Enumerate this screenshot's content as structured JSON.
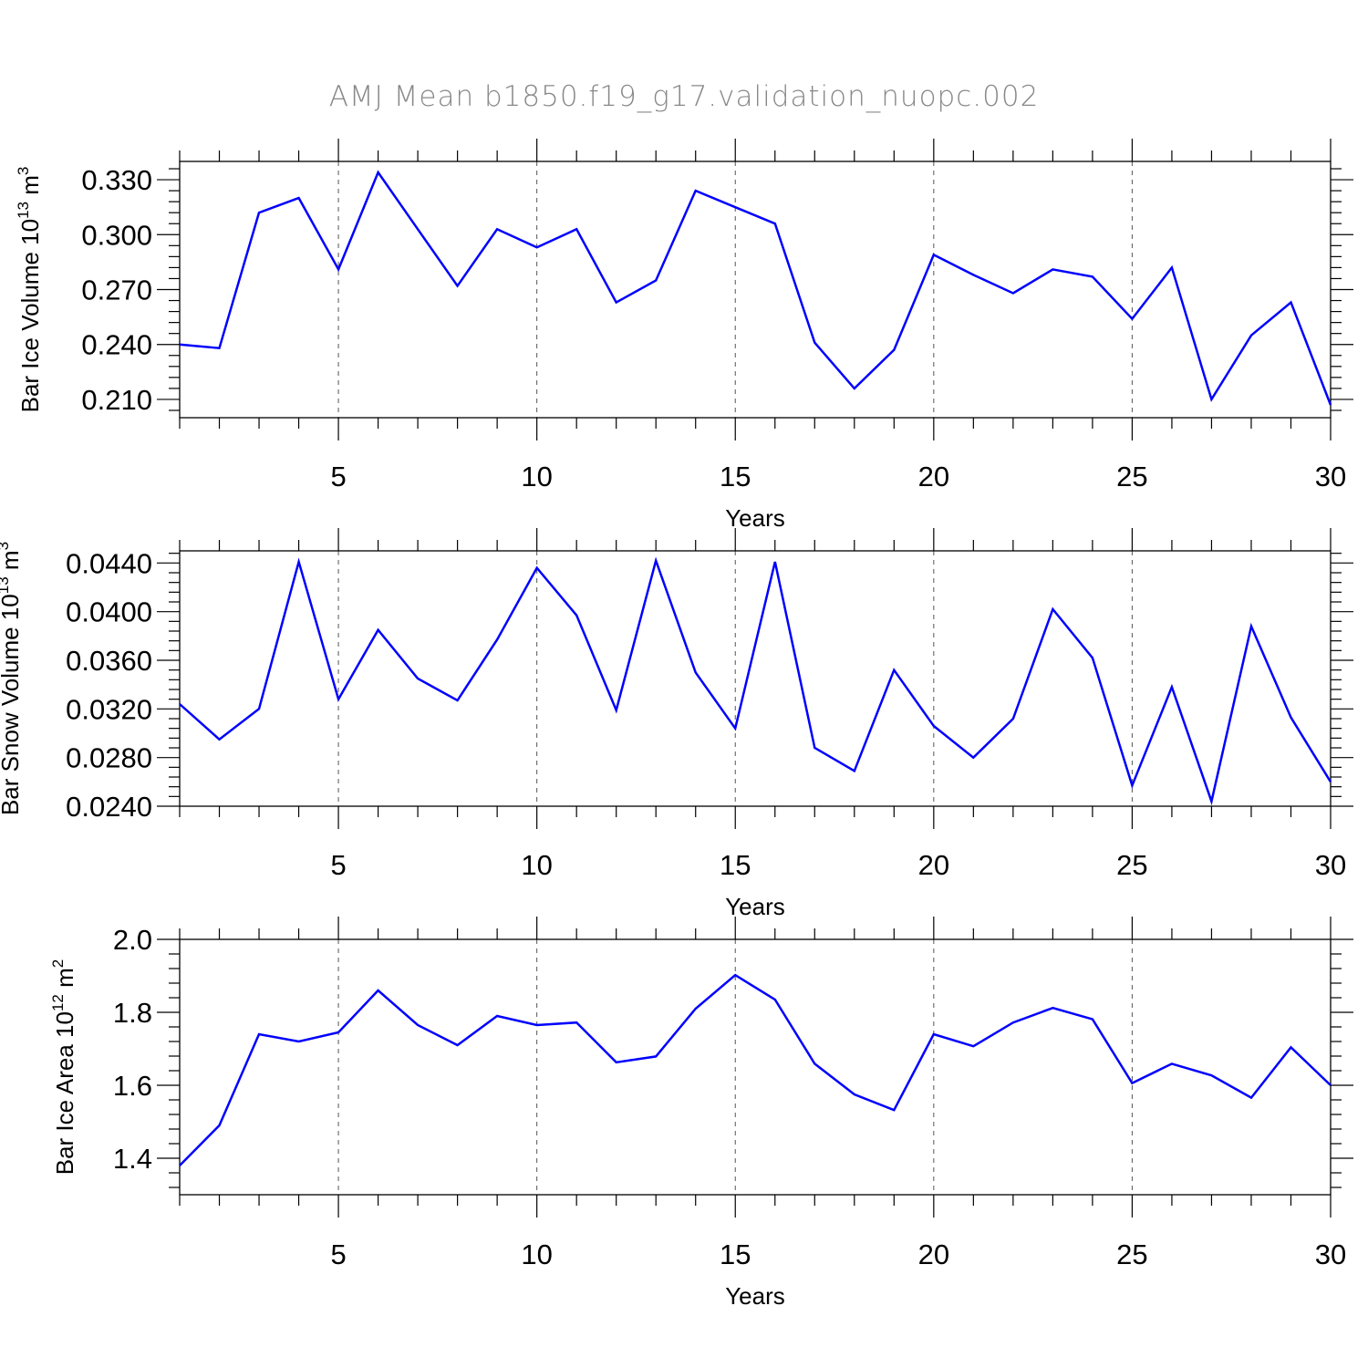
{
  "title": "AMJ Mean b1850.f19_g17.validation_nuopc.002",
  "colors": {
    "line": "#0000ff",
    "title": "#888888",
    "axis": "#000000"
  },
  "chart_data": [
    {
      "type": "line",
      "ylabel_main": "Bar Ice Volume 10",
      "ylabel_exp": "13",
      "ylabel_unit": " m",
      "ylabel_unit_exp": "3",
      "xlabel": "Years",
      "xlim": [
        1,
        30
      ],
      "ylim": [
        0.2,
        0.34
      ],
      "yticks": [
        0.21,
        0.24,
        0.27,
        0.3,
        0.33
      ],
      "ytick_labels": [
        "0.210",
        "0.240",
        "0.270",
        "0.300",
        "0.330"
      ],
      "yminor_step": 0.006,
      "xticks": [
        5,
        10,
        15,
        20,
        25,
        30
      ],
      "xtick_labels": [
        "5",
        "10",
        "15",
        "20",
        "25",
        "30"
      ],
      "x": [
        1,
        2,
        3,
        4,
        5,
        6,
        7,
        8,
        9,
        10,
        11,
        12,
        13,
        14,
        15,
        16,
        17,
        18,
        19,
        20,
        21,
        22,
        23,
        24,
        25,
        26,
        27,
        28,
        29,
        30
      ],
      "values": [
        0.24,
        0.238,
        0.312,
        0.32,
        0.281,
        0.334,
        0.303,
        0.272,
        0.303,
        0.293,
        0.303,
        0.263,
        0.275,
        0.324,
        0.315,
        0.306,
        0.241,
        0.216,
        0.237,
        0.289,
        0.278,
        0.268,
        0.281,
        0.277,
        0.254,
        0.282,
        0.21,
        0.245,
        0.263,
        0.207
      ]
    },
    {
      "type": "line",
      "ylabel_main": "Bar Snow Volume 10",
      "ylabel_exp": "13",
      "ylabel_unit": " m",
      "ylabel_unit_exp": "3",
      "xlabel": "Years",
      "xlim": [
        1,
        30
      ],
      "ylim": [
        0.024,
        0.045
      ],
      "yticks": [
        0.024,
        0.028,
        0.032,
        0.036,
        0.04,
        0.044
      ],
      "ytick_labels": [
        "0.0240",
        "0.0280",
        "0.0320",
        "0.0360",
        "0.0400",
        "0.0440"
      ],
      "yminor_step": 0.0008,
      "xticks": [
        5,
        10,
        15,
        20,
        25,
        30
      ],
      "xtick_labels": [
        "5",
        "10",
        "15",
        "20",
        "25",
        "30"
      ],
      "x": [
        1,
        2,
        3,
        4,
        5,
        6,
        7,
        8,
        9,
        10,
        11,
        12,
        13,
        14,
        15,
        16,
        17,
        18,
        19,
        20,
        21,
        22,
        23,
        24,
        25,
        26,
        27,
        28,
        29,
        30
      ],
      "values": [
        0.0324,
        0.0295,
        0.032,
        0.0441,
        0.0328,
        0.0385,
        0.0345,
        0.0327,
        0.0377,
        0.0436,
        0.0397,
        0.0319,
        0.0442,
        0.035,
        0.0304,
        0.0441,
        0.0288,
        0.0269,
        0.0352,
        0.0306,
        0.028,
        0.0312,
        0.0402,
        0.0362,
        0.0257,
        0.0338,
        0.0244,
        0.0388,
        0.0313,
        0.026
      ]
    },
    {
      "type": "line",
      "ylabel_main": "Bar Ice Area 10",
      "ylabel_exp": "12",
      "ylabel_unit": " m",
      "ylabel_unit_exp": "2",
      "xlabel": "Years",
      "xlim": [
        1,
        30
      ],
      "ylim": [
        1.3,
        2.0
      ],
      "yticks": [
        1.4,
        1.6,
        1.8,
        2.0
      ],
      "ytick_labels": [
        "1.4",
        "1.6",
        "1.8",
        "2.0"
      ],
      "yminor_step": 0.04,
      "xticks": [
        5,
        10,
        15,
        20,
        25,
        30
      ],
      "xtick_labels": [
        "5",
        "10",
        "15",
        "20",
        "25",
        "30"
      ],
      "x": [
        1,
        2,
        3,
        4,
        5,
        6,
        7,
        8,
        9,
        10,
        11,
        12,
        13,
        14,
        15,
        16,
        17,
        18,
        19,
        20,
        21,
        22,
        23,
        24,
        25,
        26,
        27,
        28,
        29,
        30
      ],
      "values": [
        1.38,
        1.49,
        1.74,
        1.72,
        1.745,
        1.86,
        1.765,
        1.71,
        1.79,
        1.765,
        1.772,
        1.663,
        1.679,
        1.81,
        1.902,
        1.835,
        1.659,
        1.575,
        1.532,
        1.74,
        1.707,
        1.772,
        1.812,
        1.781,
        1.606,
        1.659,
        1.627,
        1.566,
        1.704,
        1.6
      ]
    }
  ]
}
